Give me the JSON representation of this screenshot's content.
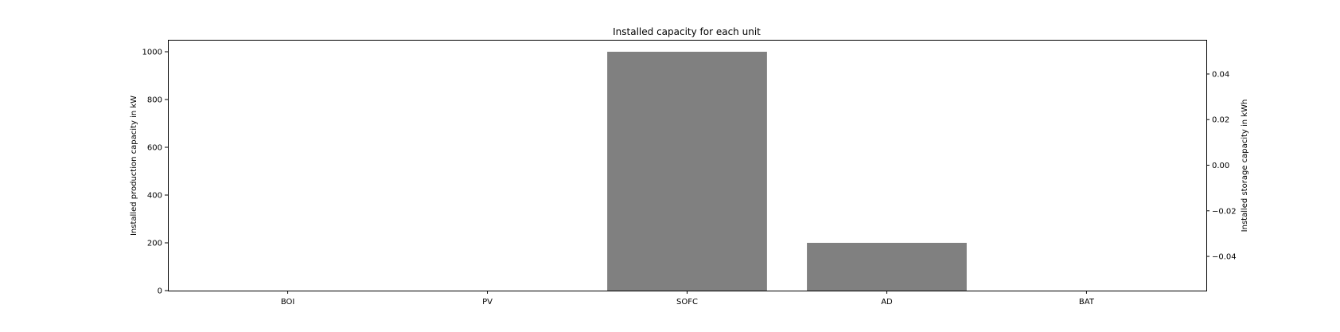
{
  "chart_data": {
    "type": "bar",
    "title": "Installed capacity for each unit",
    "categories": [
      "BOI",
      "PV",
      "SOFC",
      "AD",
      "BAT"
    ],
    "series": [
      {
        "values": [
          0,
          0,
          1000,
          200,
          0
        ],
        "color": "#808080"
      }
    ],
    "xlabel": "",
    "ylabel": "Installed production capacity in kW",
    "ylim": [
      0,
      1050
    ],
    "yticks": [
      0,
      200,
      400,
      600,
      800,
      1000
    ],
    "ylabel_right": "Installed storage capacity in kWh",
    "ylim_right": [
      -0.055,
      0.055
    ],
    "yticks_right": [
      -0.04,
      -0.02,
      0.0,
      0.02,
      0.04
    ],
    "yticks_right_labels": [
      "−0.04",
      "−0.02",
      "0.00",
      "0.02",
      "0.04"
    ],
    "grid": false,
    "bar_color": "#808080"
  }
}
